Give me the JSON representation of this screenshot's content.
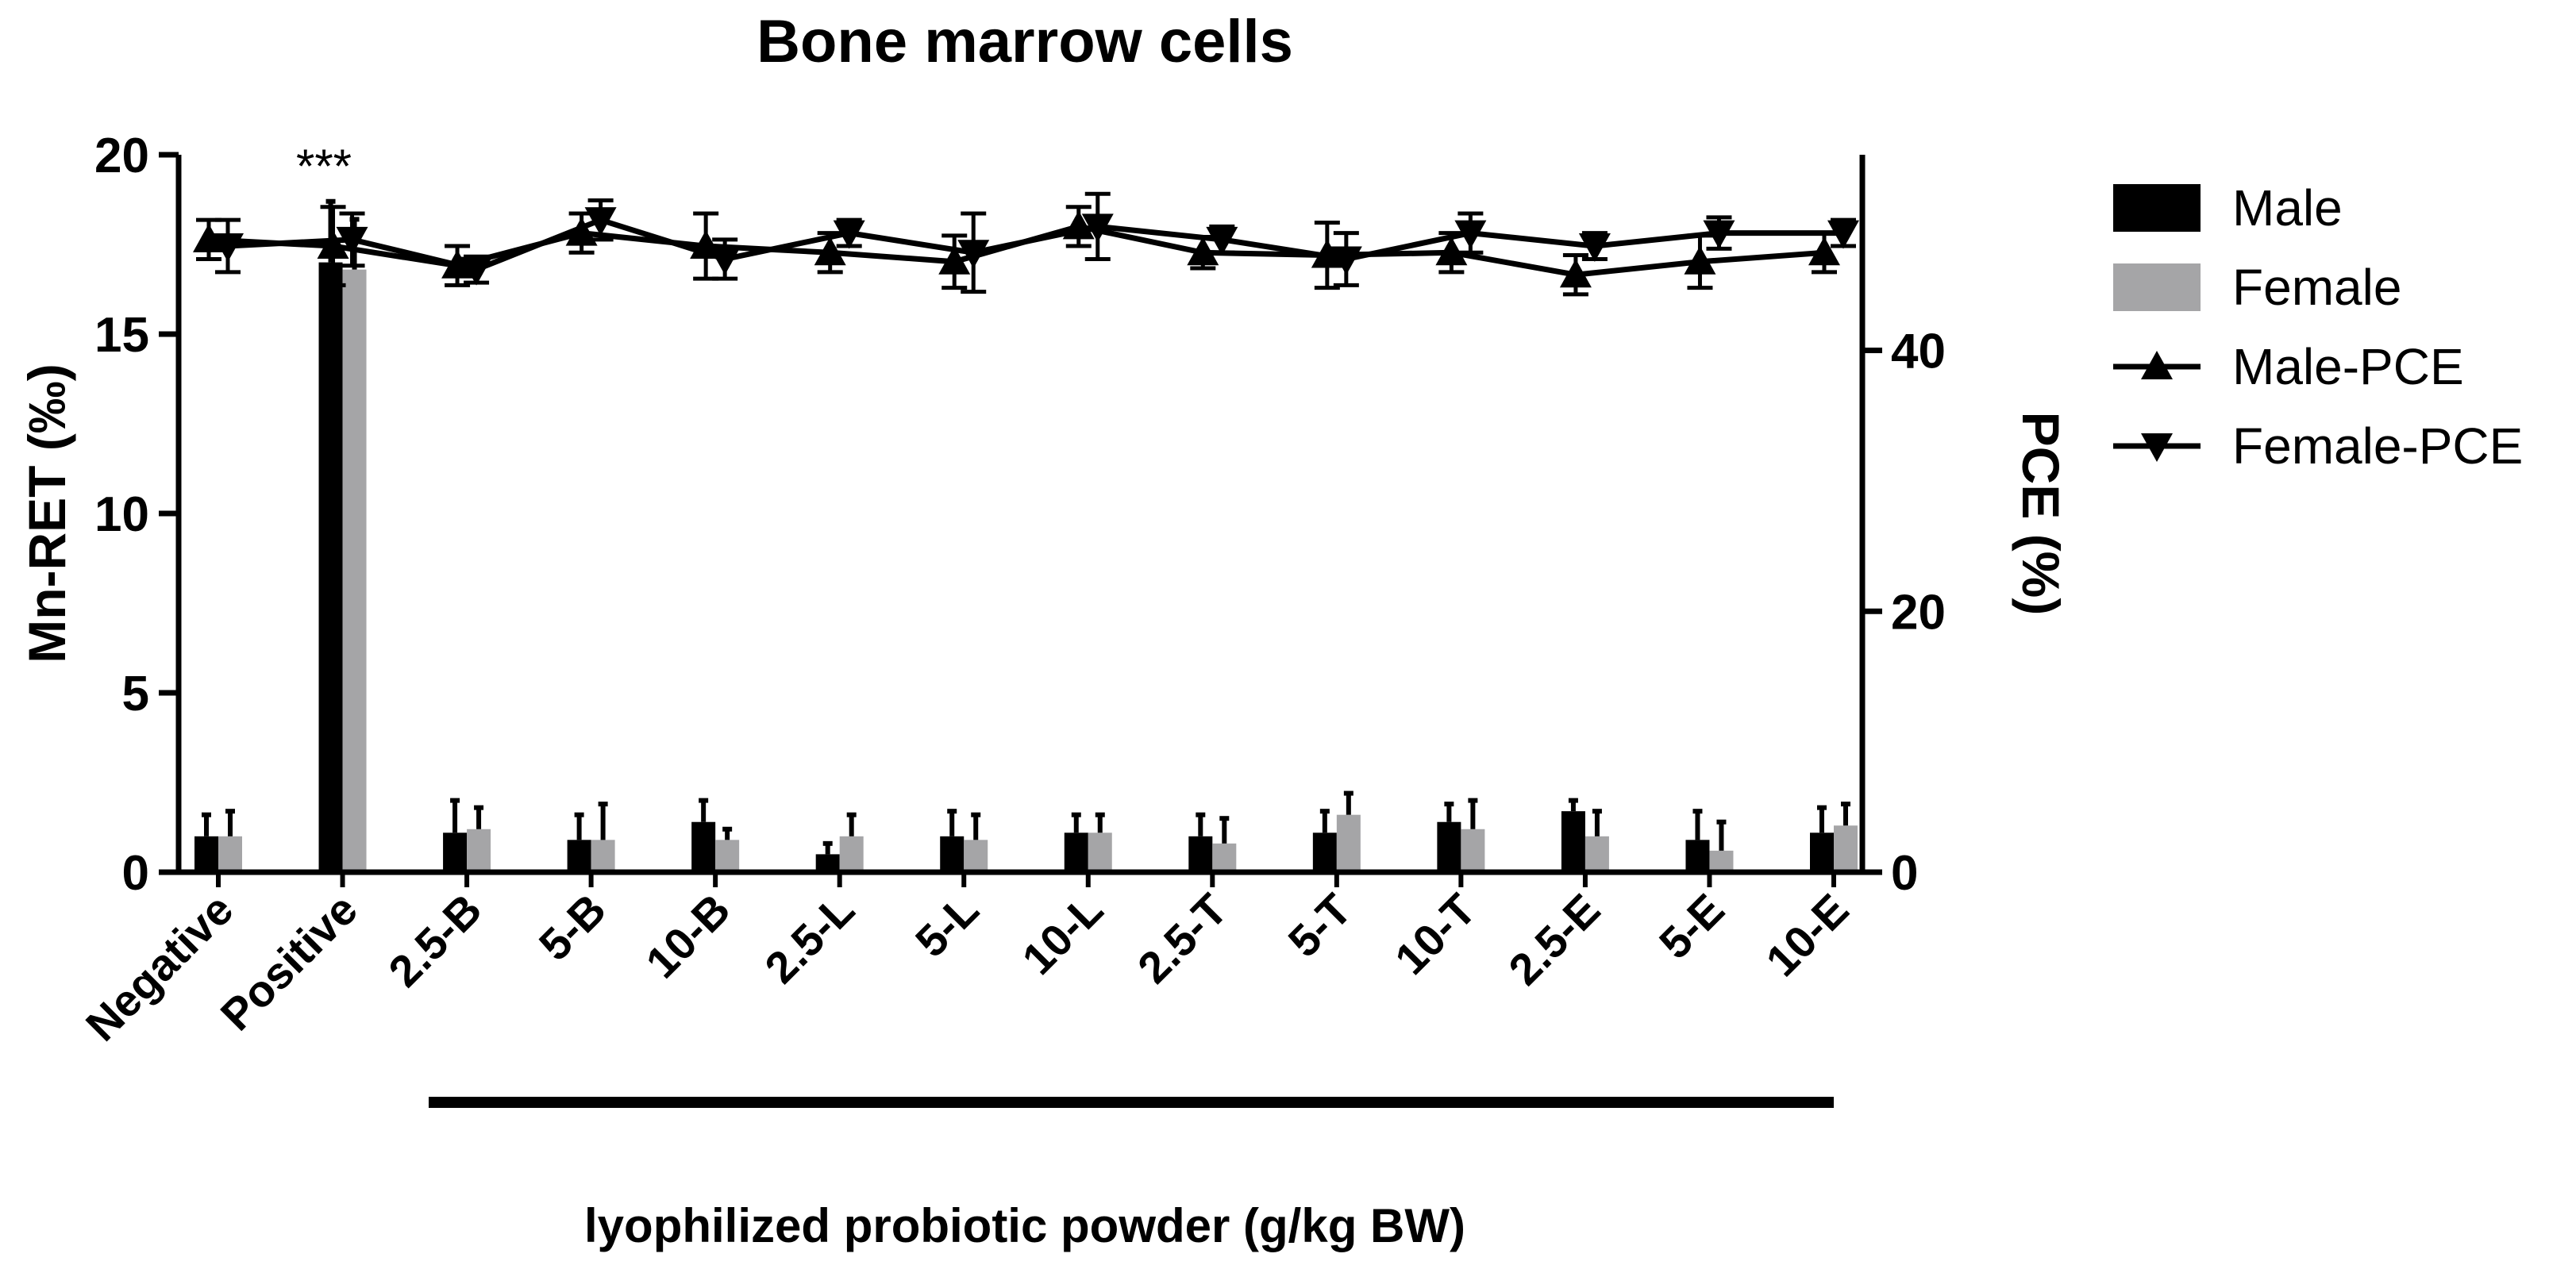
{
  "chart_data": {
    "type": "bar",
    "title": "Bone marrow cells",
    "xlabel": "lyophilized probiotic powder (g/kg BW)",
    "ylabel": "Mn-RET (‰)",
    "y2label": "PCE (%)",
    "ylim": [
      0,
      20
    ],
    "y2lim": [
      0,
      55
    ],
    "yticks": [
      "0",
      "5",
      "10",
      "15",
      "20"
    ],
    "y2ticks": [
      "0",
      "20",
      "40"
    ],
    "significance": "***",
    "categories": [
      "Negative",
      "Positive",
      "2.5-B",
      "5-B",
      "10-B",
      "2.5-L",
      "5-L",
      "10-L",
      "2.5-T",
      "5-T",
      "10-T",
      "2.5-E",
      "5-E",
      "10-E"
    ],
    "series": [
      {
        "name": "Male",
        "kind": "bar",
        "color": "#000000",
        "values": [
          1.0,
          17.0,
          1.1,
          0.9,
          1.4,
          0.5,
          1.0,
          1.1,
          1.0,
          1.1,
          1.4,
          1.7,
          0.9,
          1.1
        ],
        "err": [
          0.6,
          1.7,
          0.9,
          0.7,
          0.6,
          0.3,
          0.7,
          0.5,
          0.6,
          0.6,
          0.5,
          0.3,
          0.8,
          0.7
        ]
      },
      {
        "name": "Female",
        "kind": "bar",
        "color": "#a5a5a7",
        "values": [
          1.0,
          16.8,
          1.2,
          0.9,
          0.9,
          1.0,
          0.9,
          1.1,
          0.8,
          1.6,
          1.2,
          1.0,
          0.6,
          1.3
        ],
        "err": [
          0.7,
          1.4,
          0.6,
          1.0,
          0.3,
          0.6,
          0.7,
          0.5,
          0.7,
          0.6,
          0.8,
          0.7,
          0.8,
          0.6
        ]
      },
      {
        "name": "Male-PCE",
        "kind": "line",
        "marker": "triangle-up",
        "axis": "y2",
        "values": [
          48.5,
          48.0,
          46.5,
          49.0,
          48.0,
          47.5,
          46.8,
          49.5,
          47.5,
          47.3,
          47.5,
          45.8,
          46.8,
          47.5
        ],
        "err": [
          1.5,
          3.0,
          1.5,
          1.5,
          2.5,
          1.5,
          2.0,
          1.5,
          1.2,
          2.5,
          1.5,
          1.5,
          2.0,
          1.5
        ]
      },
      {
        "name": "Female-PCE",
        "kind": "line",
        "marker": "triangle-down",
        "axis": "y2",
        "values": [
          48.0,
          48.5,
          46.2,
          50.0,
          47.0,
          49.0,
          47.5,
          49.5,
          48.5,
          47.0,
          49.0,
          48.0,
          49.0,
          49.0
        ],
        "err": [
          2.0,
          2.0,
          1.0,
          1.5,
          1.5,
          1.0,
          3.0,
          2.5,
          1.0,
          2.0,
          1.5,
          1.0,
          1.2,
          1.0
        ]
      }
    ],
    "legend": {
      "position": "right",
      "entries": [
        "Male",
        "Female",
        "Male-PCE",
        "Female-PCE"
      ]
    }
  }
}
